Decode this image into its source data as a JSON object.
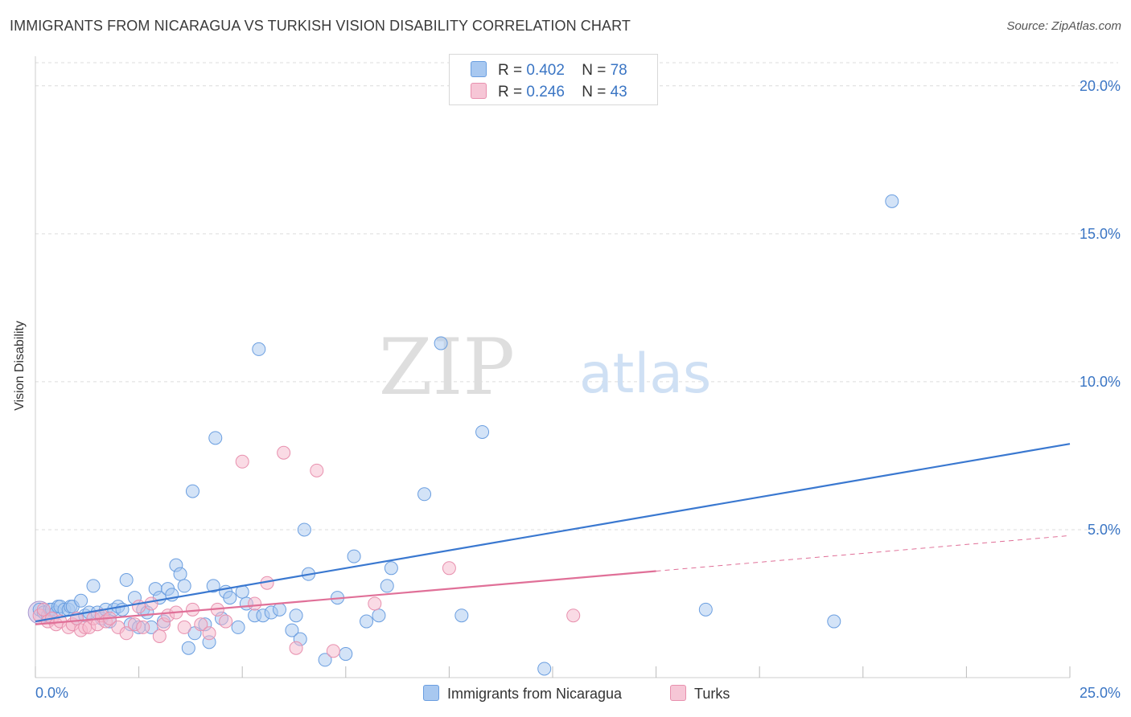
{
  "header": {
    "title": "IMMIGRANTS FROM NICARAGUA VS TURKISH VISION DISABILITY CORRELATION CHART",
    "source": "Source: ZipAtlas.com"
  },
  "watermark": {
    "zip": "ZIP",
    "atlas": "atlas"
  },
  "legend": {
    "rows": [
      {
        "r_label": "R =",
        "r_value": "0.402",
        "n_label": "N =",
        "n_value": "78"
      },
      {
        "r_label": "R =",
        "r_value": "0.246",
        "n_label": "N =",
        "n_value": "43"
      }
    ]
  },
  "bottom_legend": {
    "series1": "Immigrants from Nicaragua",
    "series2": "Turks"
  },
  "colors": {
    "blue_fill": "#a8c8f0",
    "blue_stroke": "#6a9ee0",
    "blue_line": "#3a78d0",
    "pink_fill": "#f6b8cc",
    "pink_stroke": "#e890ae",
    "pink_line": "#e07098",
    "axis_label": "#3a75c4",
    "grid": "#dcdcdc"
  },
  "chart_data": {
    "type": "scatter",
    "title": "IMMIGRANTS FROM NICARAGUA VS TURKISH VISION DISABILITY CORRELATION CHART",
    "xlabel": "",
    "ylabel": "Vision Disability",
    "xlim": [
      0,
      25
    ],
    "ylim": [
      0,
      21
    ],
    "x_tick_labels": [
      "0.0%",
      "25.0%"
    ],
    "y_ticks": [
      5,
      10,
      15,
      20
    ],
    "y_tick_labels": [
      "5.0%",
      "10.0%",
      "15.0%",
      "20.0%"
    ],
    "series": [
      {
        "name": "Immigrants from Nicaragua",
        "R": 0.402,
        "N": 78,
        "trend": {
          "x": [
            0,
            25
          ],
          "y": [
            1.9,
            7.9
          ]
        },
        "points": [
          [
            0.1,
            2.3
          ],
          [
            0.2,
            2.2
          ],
          [
            0.3,
            2.1
          ],
          [
            0.35,
            2.3
          ],
          [
            0.4,
            2.3
          ],
          [
            0.5,
            2.2
          ],
          [
            0.55,
            2.4
          ],
          [
            0.6,
            2.4
          ],
          [
            0.7,
            2.3
          ],
          [
            0.8,
            2.3
          ],
          [
            0.85,
            2.4
          ],
          [
            0.9,
            2.4
          ],
          [
            1.0,
            2.0
          ],
          [
            1.1,
            2.6
          ],
          [
            1.2,
            2.1
          ],
          [
            1.3,
            2.2
          ],
          [
            1.4,
            3.1
          ],
          [
            1.5,
            2.2
          ],
          [
            1.6,
            2.0
          ],
          [
            1.7,
            2.3
          ],
          [
            1.8,
            1.9
          ],
          [
            1.9,
            2.3
          ],
          [
            2.0,
            2.4
          ],
          [
            2.1,
            2.3
          ],
          [
            2.2,
            3.3
          ],
          [
            2.3,
            1.8
          ],
          [
            2.4,
            2.7
          ],
          [
            2.5,
            1.7
          ],
          [
            2.6,
            2.3
          ],
          [
            2.7,
            2.2
          ],
          [
            2.8,
            1.7
          ],
          [
            2.9,
            3.0
          ],
          [
            3.0,
            2.7
          ],
          [
            3.1,
            1.9
          ],
          [
            3.2,
            3.0
          ],
          [
            3.3,
            2.8
          ],
          [
            3.4,
            3.8
          ],
          [
            3.5,
            3.5
          ],
          [
            3.6,
            3.1
          ],
          [
            3.7,
            1.0
          ],
          [
            3.8,
            6.3
          ],
          [
            3.85,
            1.5
          ],
          [
            4.1,
            1.8
          ],
          [
            4.2,
            1.2
          ],
          [
            4.3,
            3.1
          ],
          [
            4.35,
            8.1
          ],
          [
            4.5,
            2.0
          ],
          [
            4.6,
            2.9
          ],
          [
            4.7,
            2.7
          ],
          [
            4.9,
            1.7
          ],
          [
            5.0,
            2.9
          ],
          [
            5.1,
            2.5
          ],
          [
            5.3,
            2.1
          ],
          [
            5.4,
            11.1
          ],
          [
            5.5,
            2.1
          ],
          [
            5.7,
            2.2
          ],
          [
            5.9,
            2.3
          ],
          [
            6.2,
            1.6
          ],
          [
            6.3,
            2.1
          ],
          [
            6.4,
            1.3
          ],
          [
            6.5,
            5.0
          ],
          [
            6.6,
            3.5
          ],
          [
            7.0,
            0.6
          ],
          [
            7.3,
            2.7
          ],
          [
            7.5,
            0.8
          ],
          [
            7.7,
            4.1
          ],
          [
            8.0,
            1.9
          ],
          [
            8.3,
            2.1
          ],
          [
            8.5,
            3.1
          ],
          [
            8.6,
            3.7
          ],
          [
            9.4,
            6.2
          ],
          [
            9.8,
            11.3
          ],
          [
            10.3,
            2.1
          ],
          [
            10.8,
            8.3
          ],
          [
            12.3,
            0.3
          ],
          [
            16.2,
            2.3
          ],
          [
            19.3,
            1.9
          ],
          [
            20.7,
            16.1
          ]
        ]
      },
      {
        "name": "Turks",
        "R": 0.246,
        "N": 43,
        "trend": {
          "x": [
            0,
            15
          ],
          "y": [
            1.8,
            3.6
          ]
        },
        "trend_dashed": {
          "x": [
            15,
            25
          ],
          "y": [
            3.6,
            4.8
          ]
        },
        "points": [
          [
            0.1,
            2.1
          ],
          [
            0.2,
            2.3
          ],
          [
            0.3,
            1.9
          ],
          [
            0.4,
            2.0
          ],
          [
            0.5,
            1.8
          ],
          [
            0.6,
            1.9
          ],
          [
            0.8,
            1.7
          ],
          [
            0.9,
            1.8
          ],
          [
            1.0,
            2.0
          ],
          [
            1.1,
            1.6
          ],
          [
            1.2,
            1.7
          ],
          [
            1.3,
            1.7
          ],
          [
            1.4,
            2.0
          ],
          [
            1.5,
            1.8
          ],
          [
            1.6,
            2.1
          ],
          [
            1.7,
            1.9
          ],
          [
            1.8,
            2.0
          ],
          [
            2.0,
            1.7
          ],
          [
            2.2,
            1.5
          ],
          [
            2.4,
            1.8
          ],
          [
            2.5,
            2.4
          ],
          [
            2.6,
            1.7
          ],
          [
            2.8,
            2.5
          ],
          [
            3.0,
            1.4
          ],
          [
            3.1,
            1.8
          ],
          [
            3.2,
            2.1
          ],
          [
            3.4,
            2.2
          ],
          [
            3.6,
            1.7
          ],
          [
            3.8,
            2.3
          ],
          [
            4.0,
            1.8
          ],
          [
            4.2,
            1.5
          ],
          [
            4.4,
            2.3
          ],
          [
            4.6,
            1.9
          ],
          [
            5.0,
            7.3
          ],
          [
            5.3,
            2.5
          ],
          [
            5.6,
            3.2
          ],
          [
            6.0,
            7.6
          ],
          [
            6.3,
            1.0
          ],
          [
            6.8,
            7.0
          ],
          [
            7.2,
            0.9
          ],
          [
            8.2,
            2.5
          ],
          [
            10.0,
            3.7
          ],
          [
            13.0,
            2.1
          ]
        ]
      }
    ]
  }
}
